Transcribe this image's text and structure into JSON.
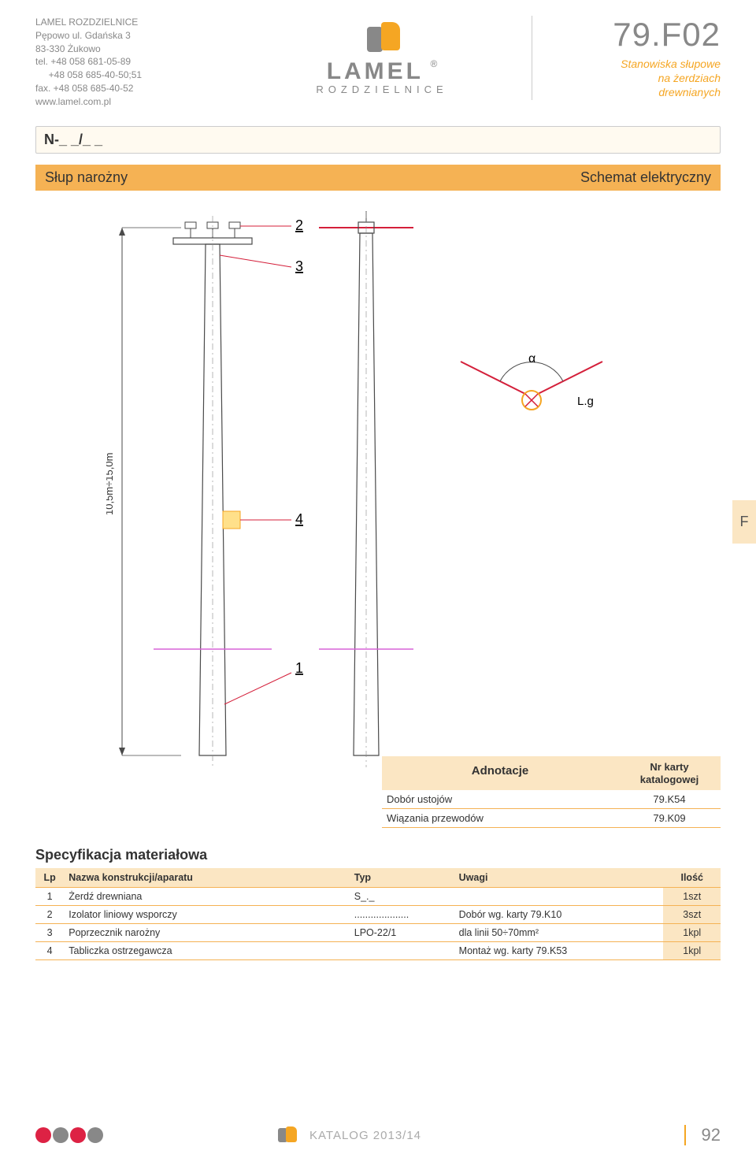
{
  "company": {
    "name": "LAMEL ROZDZIELNICE",
    "addr1": "Pępowo ul. Gdańska 3",
    "addr2": "83-330 Żukowo",
    "tel": "tel. +48 058 681-05-89",
    "tel2": "     +48 058 685-40-50;51",
    "fax": "fax. +48 058 685-40-52",
    "web": "www.lamel.com.pl"
  },
  "logo": {
    "text": "LAMEL",
    "sub": "ROZDZIELNICE",
    "reg": "®"
  },
  "doc": {
    "code": "79.F02",
    "desc1": "Stanowiska słupowe",
    "desc2": "na żerdziach",
    "desc3": "drewnianych"
  },
  "field_bar": "N-_ _/_ _",
  "section_left": "Słup narożny",
  "section_right": "Schemat elektryczny",
  "diagram": {
    "height_label": "10,5m÷15,0m",
    "callouts": [
      "1",
      "2",
      "3",
      "4"
    ],
    "angle_alpha": "α",
    "angle_lg": "L.g",
    "colors": {
      "outline": "#4a4a4a",
      "leader": "#d41f3a",
      "dim": "#d41f3a",
      "centerline": "#888888",
      "ground": "#d763d7",
      "accent": "#f5a623"
    }
  },
  "ftab": "F",
  "annot": {
    "h1": "Adnotacje",
    "h2a": "Nr karty",
    "h2b": "katalogowej",
    "rows": [
      {
        "label": "Dobór ustojów",
        "ref": "79.K54"
      },
      {
        "label": "Wiązania przewodów",
        "ref": "79.K09"
      }
    ]
  },
  "spec": {
    "title": "Specyfikacja materiałowa",
    "headers": {
      "lp": "Lp",
      "name": "Nazwa konstrukcji/aparatu",
      "type": "Typ",
      "notes": "Uwagi",
      "qty": "Ilość"
    },
    "rows": [
      {
        "lp": "1",
        "name": "Żerdź drewniana",
        "type": "S_._",
        "notes": "",
        "qty": "1szt"
      },
      {
        "lp": "2",
        "name": "Izolator liniowy wsporczy",
        "type": "....................",
        "notes": "Dobór wg. karty 79.K10",
        "qty": "3szt"
      },
      {
        "lp": "3",
        "name": "Poprzecznik narożny",
        "type": "LPO-22/1",
        "notes": "dla linii 50÷70mm²",
        "qty": "1kpl"
      },
      {
        "lp": "4",
        "name": "Tabliczka ostrzegawcza",
        "type": "",
        "notes": "Montaż wg. karty 79.K53",
        "qty": "1kpl"
      }
    ]
  },
  "footer": {
    "katalog": "KATALOG 2013/14",
    "page": "92"
  }
}
